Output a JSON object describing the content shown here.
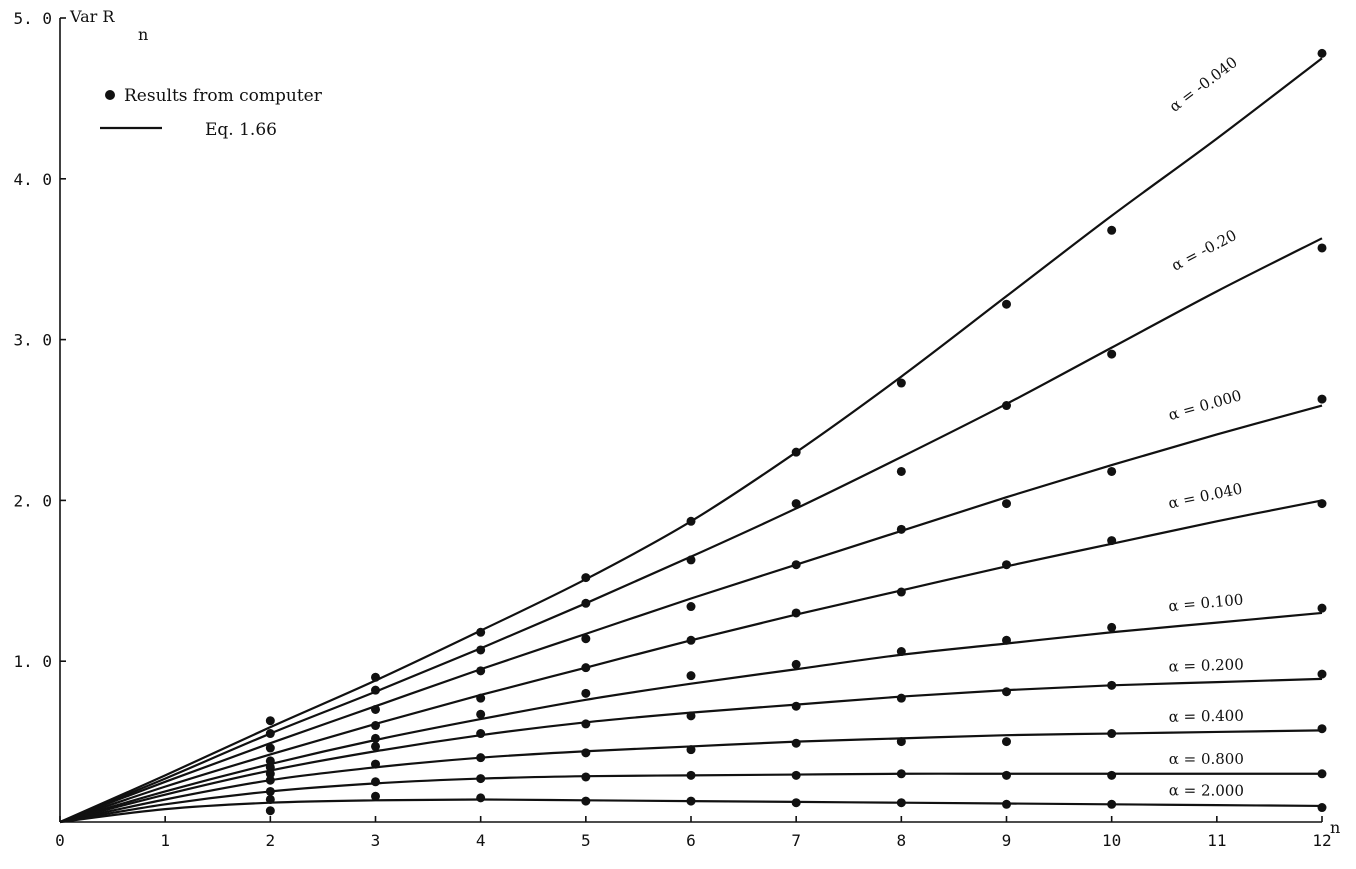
{
  "chart_data": {
    "type": "line",
    "title": "",
    "xlabel": "n",
    "ylabel": "Var R",
    "ylabel_subscript": "n",
    "xlim": [
      0,
      12
    ],
    "ylim": [
      0,
      5.0
    ],
    "x_ticks": [
      0,
      1,
      2,
      3,
      4,
      5,
      6,
      7,
      8,
      9,
      10,
      11,
      12
    ],
    "x_tick_labels": [
      "0",
      "1",
      "2",
      "3",
      "4",
      "5",
      "6",
      "7",
      "8",
      "9",
      "10",
      "11",
      "12"
    ],
    "y_ticks": [
      1.0,
      2.0,
      3.0,
      4.0,
      5.0
    ],
    "y_tick_labels": [
      "1. 0",
      "2. 0",
      "3. 0",
      "4. 0",
      "5. 0"
    ],
    "legend": {
      "position": "top-left",
      "points_label": "Results from computer",
      "line_label": "Eq. 1.66"
    },
    "series": [
      {
        "name": "α = -0.040",
        "line": {
          "x": [
            0,
            1,
            2,
            3,
            4,
            5,
            6,
            7,
            8,
            9,
            10,
            11,
            12
          ],
          "y": [
            0,
            0.29,
            0.59,
            0.88,
            1.19,
            1.51,
            1.87,
            2.3,
            2.77,
            3.27,
            3.77,
            4.25,
            4.75
          ]
        },
        "points": {
          "x": [
            2,
            3,
            4,
            5,
            6,
            7,
            8,
            9,
            10,
            12
          ],
          "y": [
            0.63,
            0.9,
            1.18,
            1.52,
            1.87,
            2.3,
            2.73,
            3.22,
            3.68,
            4.78
          ]
        }
      },
      {
        "name": "α = -0.20",
        "line": {
          "x": [
            0,
            1,
            2,
            3,
            4,
            5,
            6,
            7,
            8,
            9,
            10,
            11,
            12
          ],
          "y": [
            0,
            0.27,
            0.55,
            0.81,
            1.08,
            1.36,
            1.65,
            1.95,
            2.27,
            2.6,
            2.95,
            3.3,
            3.63
          ]
        },
        "points": {
          "x": [
            2,
            3,
            4,
            5,
            6,
            7,
            8,
            9,
            10,
            12
          ],
          "y": [
            0.55,
            0.82,
            1.07,
            1.36,
            1.63,
            1.98,
            2.18,
            2.59,
            2.91,
            3.57
          ]
        }
      },
      {
        "name": "α = 0.000",
        "line": {
          "x": [
            0,
            1,
            2,
            3,
            4,
            5,
            6,
            7,
            8,
            9,
            10,
            11,
            12
          ],
          "y": [
            0,
            0.25,
            0.49,
            0.72,
            0.95,
            1.17,
            1.39,
            1.6,
            1.81,
            2.02,
            2.22,
            2.41,
            2.59
          ]
        },
        "points": {
          "x": [
            2,
            3,
            4,
            5,
            6,
            7,
            8,
            9,
            10,
            12
          ],
          "y": [
            0.46,
            0.7,
            0.94,
            1.14,
            1.34,
            1.6,
            1.82,
            1.98,
            2.18,
            2.63
          ]
        }
      },
      {
        "name": "α = 0.040",
        "line": {
          "x": [
            0,
            1,
            2,
            3,
            4,
            5,
            6,
            7,
            8,
            9,
            10,
            11,
            12
          ],
          "y": [
            0,
            0.22,
            0.42,
            0.61,
            0.79,
            0.96,
            1.13,
            1.29,
            1.44,
            1.59,
            1.73,
            1.87,
            2.0
          ]
        },
        "points": {
          "x": [
            2,
            3,
            4,
            5,
            6,
            7,
            8,
            9,
            10,
            12
          ],
          "y": [
            0.38,
            0.6,
            0.77,
            0.96,
            1.13,
            1.3,
            1.43,
            1.6,
            1.75,
            1.98
          ]
        }
      },
      {
        "name": "α = 0.100",
        "line": {
          "x": [
            0,
            1,
            2,
            3,
            4,
            5,
            6,
            7,
            8,
            9,
            10,
            11,
            12
          ],
          "y": [
            0,
            0.19,
            0.36,
            0.51,
            0.64,
            0.76,
            0.86,
            0.95,
            1.04,
            1.11,
            1.18,
            1.24,
            1.3
          ]
        },
        "points": {
          "x": [
            2,
            3,
            4,
            5,
            6,
            7,
            8,
            9,
            10,
            12
          ],
          "y": [
            0.34,
            0.52,
            0.67,
            0.8,
            0.91,
            0.98,
            1.06,
            1.13,
            1.21,
            1.33
          ]
        }
      },
      {
        "name": "α = 0.200",
        "line": {
          "x": [
            0,
            1,
            2,
            3,
            4,
            5,
            6,
            7,
            8,
            9,
            10,
            11,
            12
          ],
          "y": [
            0,
            0.17,
            0.32,
            0.44,
            0.54,
            0.62,
            0.68,
            0.73,
            0.78,
            0.82,
            0.85,
            0.87,
            0.89
          ]
        },
        "points": {
          "x": [
            2,
            3,
            4,
            5,
            6,
            7,
            8,
            9,
            10,
            12
          ],
          "y": [
            0.3,
            0.47,
            0.55,
            0.61,
            0.66,
            0.72,
            0.77,
            0.81,
            0.85,
            0.92
          ]
        }
      },
      {
        "name": "α = 0.400",
        "line": {
          "x": [
            0,
            1,
            2,
            3,
            4,
            5,
            6,
            7,
            8,
            9,
            10,
            11,
            12
          ],
          "y": [
            0,
            0.14,
            0.26,
            0.34,
            0.4,
            0.44,
            0.47,
            0.5,
            0.52,
            0.54,
            0.55,
            0.56,
            0.57
          ]
        },
        "points": {
          "x": [
            2,
            3,
            4,
            5,
            6,
            7,
            8,
            9,
            10,
            12
          ],
          "y": [
            0.26,
            0.36,
            0.4,
            0.43,
            0.45,
            0.49,
            0.5,
            0.5,
            0.55,
            0.58
          ]
        }
      },
      {
        "name": "α = 0.800",
        "line": {
          "x": [
            0,
            1,
            2,
            3,
            4,
            5,
            6,
            7,
            8,
            9,
            10,
            11,
            12
          ],
          "y": [
            0,
            0.11,
            0.19,
            0.24,
            0.27,
            0.285,
            0.29,
            0.295,
            0.3,
            0.3,
            0.3,
            0.3,
            0.3
          ]
        },
        "points": {
          "x": [
            2,
            3,
            4,
            5,
            6,
            7,
            8,
            9,
            10,
            12
          ],
          "y": [
            0.19,
            0.25,
            0.27,
            0.28,
            0.29,
            0.29,
            0.3,
            0.29,
            0.29,
            0.3
          ]
        }
      },
      {
        "name": "α = 2.000",
        "line": {
          "x": [
            0,
            1,
            2,
            3,
            4,
            5,
            6,
            7,
            8,
            9,
            10,
            11,
            12
          ],
          "y": [
            0,
            0.08,
            0.12,
            0.135,
            0.14,
            0.135,
            0.13,
            0.125,
            0.12,
            0.115,
            0.11,
            0.105,
            0.1
          ]
        },
        "points": {
          "x": [
            2,
            3,
            4,
            5,
            6,
            7,
            8,
            9,
            10,
            12
          ],
          "y": [
            0.14,
            0.16,
            0.15,
            0.13,
            0.13,
            0.12,
            0.12,
            0.11,
            0.11,
            0.09
          ]
        }
      }
    ],
    "extra_points": {
      "x": [
        2
      ],
      "y": [
        0.07
      ]
    }
  }
}
